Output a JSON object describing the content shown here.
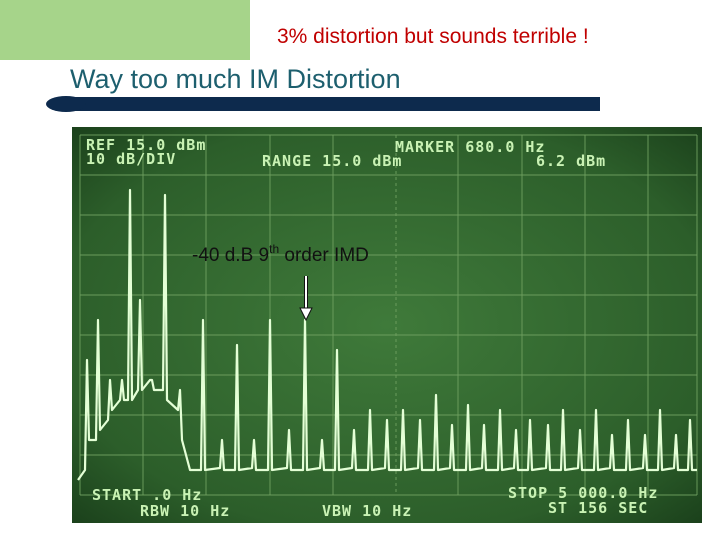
{
  "slide": {
    "subtitle": "3% distortion but sounds terrible !",
    "title": "Way too much IM Distortion"
  },
  "screen": {
    "ref": "REF 15.0 dBm",
    "scale": "10 dB/DIV",
    "range": "RANGE 15.0 dBm",
    "marker": "MARKER 680.0 Hz",
    "marker_level": "6.2 dBm",
    "start": "START .0 Hz",
    "rbw": "RBW 10 Hz",
    "vbw": "VBW 10 Hz",
    "stop": "STOP 5 000.0 Hz",
    "sweep_time": "ST 156 SEC"
  },
  "annotation": {
    "text": "-40 d.B 9",
    "superscript": "th",
    "suffix": " order IMD"
  }
}
